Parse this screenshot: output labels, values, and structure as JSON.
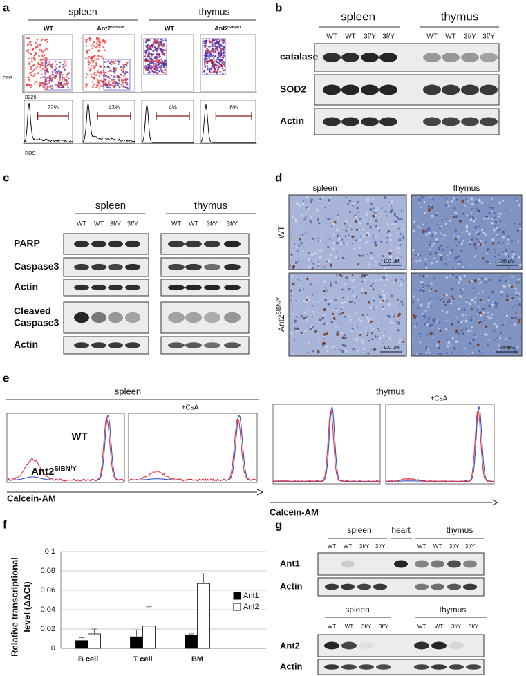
{
  "panel_a": {
    "label": "a",
    "tissues": [
      "spleen",
      "thymus"
    ],
    "genotypes": [
      "WT",
      {
        "base": "Ant2",
        "sup": "SIBN/Y"
      },
      "WT",
      {
        "base": "Ant2",
        "sup": "SIBN/Y"
      }
    ],
    "y_axis": "CD3",
    "x_axis": "B220",
    "hist_axis": "ROS",
    "percentages": [
      "22%",
      "43%",
      "4%",
      "6%"
    ]
  },
  "panel_b": {
    "label": "b",
    "tissues": [
      "spleen",
      "thymus"
    ],
    "lanes": [
      "WT",
      "WT",
      "3f/Y",
      "3f/Y",
      "WT",
      "WT",
      "3f/Y",
      "3f/Y"
    ],
    "rows": [
      "catalase",
      "SOD2",
      "Actin"
    ]
  },
  "panel_c": {
    "label": "c",
    "tissues": [
      "spleen",
      "thymus"
    ],
    "lanes": [
      "WT",
      "WT",
      "3f/Y",
      "3f/Y",
      "WT",
      "WT",
      "3f/Y",
      "3f/Y"
    ],
    "rows": [
      [
        "PARP"
      ],
      [
        "Caspase3"
      ],
      [
        "Actin"
      ],
      [
        "Cleaved",
        "Caspase3"
      ],
      [
        "Actin"
      ]
    ]
  },
  "panel_d": {
    "label": "d",
    "tissues": [
      "spleen",
      "thymus"
    ],
    "genotypes": [
      "WT",
      {
        "base": "Ant2",
        "sup": "SIBN/Y"
      }
    ],
    "scale_bars": [
      "100 μM",
      "100 μM",
      "100 μM",
      "100 μM"
    ]
  },
  "panel_e": {
    "label": "e",
    "tissues": [
      "spleen",
      "thymus"
    ],
    "treatment": [
      "+CsA",
      "+CsA"
    ],
    "legend": [
      "WT",
      {
        "base": "Ant2",
        "sup": "SIBN/Y"
      }
    ],
    "x_axis": [
      "Calcein-AM",
      "Calcein-AM"
    ]
  },
  "chart_data": {
    "type": "bar",
    "panel_label": "f",
    "y_label": [
      "Relative transcriptional",
      "level (ΔΔCt)"
    ],
    "categories": [
      "B cell",
      "T cell",
      "BM"
    ],
    "series": [
      {
        "name": "Ant1",
        "color": "#000000",
        "values": [
          0.008,
          0.012,
          0.014
        ],
        "errors": [
          0.003,
          0.007,
          0.001
        ]
      },
      {
        "name": "Ant2",
        "color": "#ffffff",
        "values": [
          0.015,
          0.023,
          0.067
        ],
        "errors": [
          0.005,
          0.02,
          0.01
        ]
      }
    ],
    "ylim": [
      0,
      0.1
    ],
    "yticks": [
      0,
      0.02,
      0.04,
      0.06,
      0.08,
      0.1
    ],
    "grid": true,
    "legend": "right"
  },
  "panel_g": {
    "label": "g",
    "top": {
      "tissues": [
        "spleen",
        "heart",
        "thymus"
      ],
      "lanes": [
        "WT",
        "WT",
        "3f/Y",
        "3f/Y",
        "WT",
        "WT",
        "3f/Y",
        "3f/Y"
      ],
      "rows": [
        "Ant1",
        "Actin"
      ]
    },
    "bottom": {
      "tissues": [
        "spleen",
        "thymus"
      ],
      "lanes": [
        "WT",
        "WT",
        "3f/Y",
        "3f/Y",
        "WT",
        "WT",
        "3f/Y",
        "3f/Y"
      ],
      "rows": [
        "Ant2",
        "Actin"
      ]
    }
  }
}
